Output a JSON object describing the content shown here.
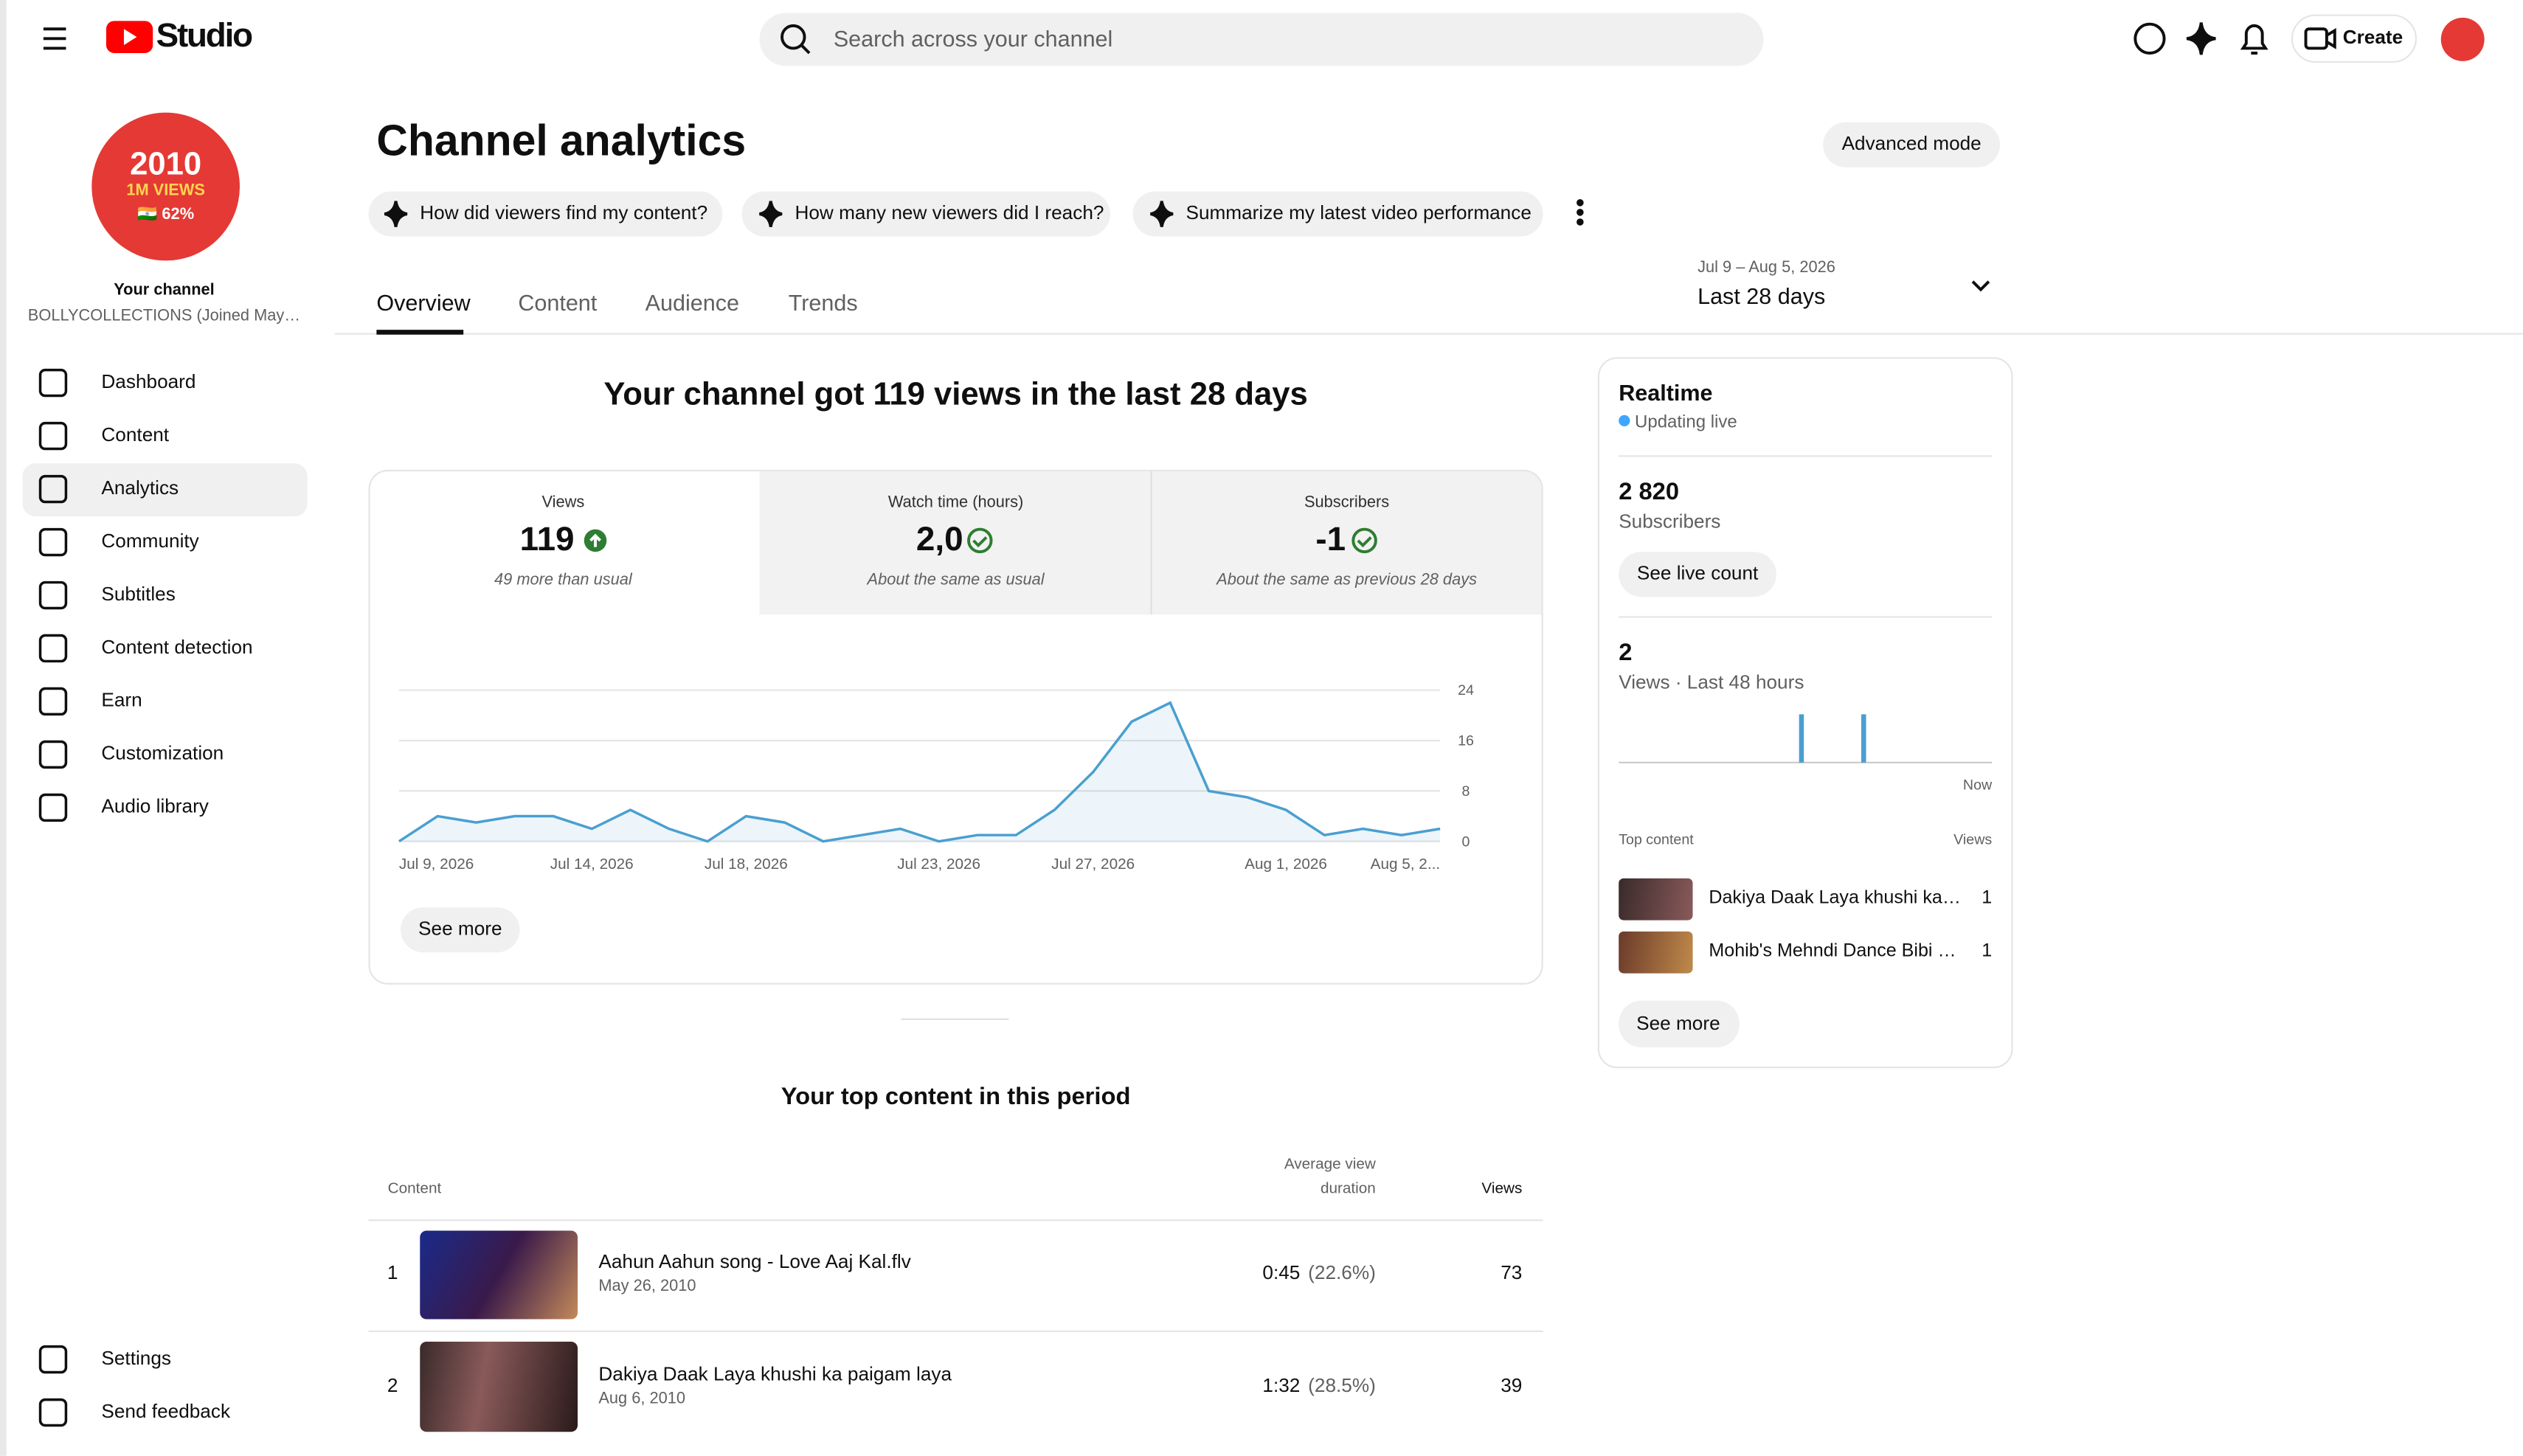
{
  "header": {
    "logo": "Studio",
    "search_placeholder": "Search across your channel",
    "create": "Create"
  },
  "sidebar": {
    "avatar": {
      "line1": "2010",
      "line2": "1M VIEWS",
      "line3": "🇮🇳 62%"
    },
    "channel_label": "Your channel",
    "channel_name": "BOLLYCOLLECTIONS (Joined May…",
    "nav": [
      "Dashboard",
      "Content",
      "Analytics",
      "Community",
      "Subtitles",
      "Content detection",
      "Earn",
      "Customization",
      "Audio library"
    ],
    "bottom": [
      "Settings",
      "Send feedback"
    ]
  },
  "page": {
    "title": "Channel analytics",
    "advanced_mode": "Advanced mode",
    "prompts": [
      "How did viewers find my content?",
      "How many new viewers did I reach?",
      "Summarize my latest video performance"
    ],
    "date_range": {
      "range": "Jul 9 – Aug 5, 2026",
      "label": "Last 28 days"
    },
    "tabs": [
      "Overview",
      "Content",
      "Audience",
      "Trends"
    ]
  },
  "overview": {
    "headline": "Your channel got 119 views in the last 28 days",
    "metrics": [
      {
        "label": "Views",
        "value": "119",
        "note": "49 more than usual"
      },
      {
        "label": "Watch time (hours)",
        "value": "2,0",
        "note": "About the same as usual"
      },
      {
        "label": "Subscribers",
        "value": "-1",
        "note": "About the same as previous 28 days"
      }
    ],
    "see_more": "See more"
  },
  "chart_data": [
    {
      "type": "line",
      "color": "#4a9fd0",
      "grid": true,
      "ylim": [
        0,
        24
      ],
      "yticks": [
        0,
        8,
        16,
        24
      ],
      "categories": [
        "Jul 9, 2026",
        null,
        null,
        null,
        null,
        "Jul 14, 2026",
        null,
        null,
        null,
        "Jul 18, 2026",
        null,
        null,
        null,
        null,
        "Jul 23, 2026",
        null,
        null,
        null,
        "Jul 27, 2026",
        null,
        null,
        null,
        null,
        "Aug 1, 2026",
        null,
        null,
        null,
        "Aug 5, 2..."
      ],
      "values": [
        0,
        4,
        3,
        4,
        4,
        2,
        5,
        2,
        0,
        4,
        3,
        0,
        1,
        2,
        0,
        1,
        1,
        5,
        11,
        19,
        22,
        8,
        7,
        5,
        1,
        2,
        1,
        2
      ]
    },
    {
      "type": "bar",
      "color": "#4a9fd0",
      "ylim": [
        0,
        1
      ],
      "values": [
        0,
        0,
        0,
        0,
        0,
        0,
        0,
        0,
        0,
        0,
        0,
        0,
        0,
        0,
        0,
        0,
        0,
        0,
        0,
        0,
        0,
        0,
        0,
        1,
        0,
        0,
        0,
        0,
        0,
        0,
        0,
        1,
        0,
        0,
        0,
        0,
        0,
        0,
        0,
        0,
        0,
        0,
        0,
        0,
        0,
        0,
        0,
        0
      ]
    }
  ],
  "top_content": {
    "title": "Your top content in this period",
    "columns": {
      "content": "Content",
      "avg1": "Average view",
      "avg2": "duration",
      "views": "Views"
    },
    "rows": [
      {
        "rank": "1",
        "title": "Aahun Aahun song - Love Aaj Kal.flv",
        "date": "May 26, 2010",
        "duration": "0:45",
        "percent": "(22.6%)",
        "views": "73"
      },
      {
        "rank": "2",
        "title": "Dakiya Daak Laya khushi ka paigam laya",
        "date": "Aug 6, 2010",
        "duration": "1:32",
        "percent": "(28.5%)",
        "views": "39"
      }
    ]
  },
  "realtime": {
    "title": "Realtime",
    "status": "Updating live",
    "subscribers": "2 820",
    "subscribers_label": "Subscribers",
    "see_live_count": "See live count",
    "views": "2",
    "views_label": "Views · Last 48 hours",
    "now": "Now",
    "top_content": "Top content",
    "views_col": "Views",
    "items": [
      {
        "title": "Dakiya Daak Laya khushi ka…",
        "views": "1"
      },
      {
        "title": "Mohib's Mehndi Dance Bibi …",
        "views": "1"
      }
    ],
    "see_more": "See more"
  }
}
